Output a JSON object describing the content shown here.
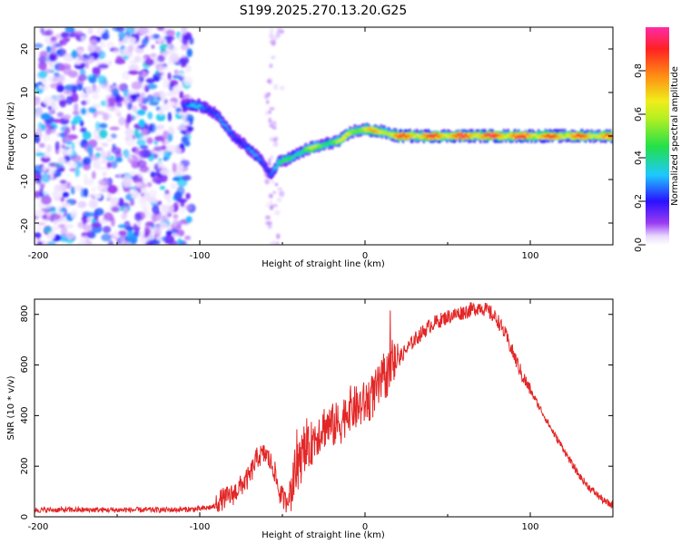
{
  "title": "S199.2025.270.13.20.G25",
  "colors": {
    "line": "#e32626",
    "ridge_low": "#8b3cf0",
    "background": "#ffffff",
    "axis": "#000000"
  },
  "chart_data": [
    {
      "type": "heatmap",
      "name": "spectrogram",
      "xlabel": "Height of straight line (km)",
      "ylabel": "Frequency (Hz)",
      "xlim": [
        -200,
        150
      ],
      "ylim": [
        -25,
        25
      ],
      "xticks": [
        -200,
        -100,
        0,
        100
      ],
      "xtick_labels": [
        "-200",
        "-100",
        "0",
        "100"
      ],
      "yticks": [
        -20,
        -10,
        0,
        10,
        20
      ],
      "ytick_labels": [
        "-20",
        "-10",
        "0",
        "10",
        "20"
      ],
      "colorbar": {
        "label": "Normalized spectral amplitude",
        "range": [
          0,
          1
        ],
        "ticks": [
          0.0,
          0.2,
          0.4,
          0.6,
          0.8
        ],
        "tick_labels": [
          "0.0",
          "0.2",
          "0.4",
          "0.6",
          "0.8"
        ],
        "colormap": "rainbow (white-violet-blue-cyan-green-yellow-orange-red-magenta)"
      },
      "ridge": {
        "x": [
          -110,
          -100,
          -90,
          -80,
          -70,
          -62,
          -57,
          -52,
          -45,
          -35,
          -25,
          -15,
          -8,
          0,
          10,
          20,
          40,
          60,
          80,
          100,
          120,
          150
        ],
        "freq": [
          7,
          7,
          5,
          0,
          -3,
          -6,
          -9,
          -6,
          -5,
          -3,
          -2,
          -1,
          1,
          1.5,
          1,
          0,
          0,
          0,
          0,
          0,
          0,
          0
        ],
        "amplitude": [
          0.3,
          0.35,
          0.3,
          0.3,
          0.3,
          0.3,
          0.35,
          0.45,
          0.5,
          0.6,
          0.6,
          0.65,
          0.7,
          0.75,
          0.8,
          0.9,
          0.92,
          0.95,
          0.95,
          0.92,
          0.9,
          0.85
        ]
      },
      "noise_region": {
        "x_range": [
          -200,
          -110
        ],
        "freq_range": [
          -25,
          25
        ],
        "amplitude_range": [
          0.02,
          0.35
        ]
      }
    },
    {
      "type": "line",
      "name": "snr",
      "xlabel": "Height of straight line (km)",
      "ylabel": "SNR (10 * v/v)",
      "xlim": [
        -200,
        150
      ],
      "ylim": [
        0,
        860
      ],
      "xticks": [
        -200,
        -100,
        0,
        100
      ],
      "xtick_labels": [
        "-200",
        "-100",
        "0",
        "100"
      ],
      "yticks": [
        0,
        200,
        400,
        600,
        800
      ],
      "ytick_labels": [
        "0",
        "200",
        "400",
        "600",
        "800"
      ],
      "series": [
        {
          "name": "SNR",
          "x": [
            -200,
            -180,
            -160,
            -140,
            -120,
            -100,
            -90,
            -80,
            -70,
            -65,
            -60,
            -55,
            -52,
            -48,
            -44,
            -40,
            -35,
            -30,
            -25,
            -20,
            -15,
            -10,
            -5,
            0,
            5,
            10,
            20,
            30,
            40,
            50,
            60,
            65,
            70,
            75,
            80,
            85,
            90,
            95,
            100,
            105,
            110,
            115,
            120,
            125,
            130,
            135,
            140,
            145,
            150
          ],
          "y": [
            25,
            25,
            25,
            25,
            25,
            28,
            40,
            70,
            140,
            220,
            230,
            170,
            80,
            40,
            110,
            200,
            250,
            310,
            350,
            350,
            360,
            420,
            420,
            440,
            470,
            520,
            620,
            700,
            760,
            790,
            810,
            820,
            830,
            810,
            780,
            720,
            640,
            560,
            500,
            440,
            380,
            320,
            270,
            210,
            160,
            120,
            90,
            60,
            45
          ]
        }
      ]
    }
  ]
}
